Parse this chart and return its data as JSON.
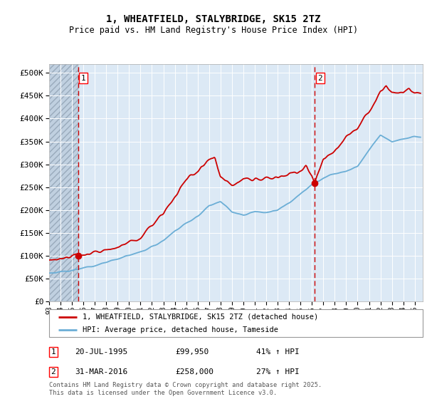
{
  "title": "1, WHEATFIELD, STALYBRIDGE, SK15 2TZ",
  "subtitle": "Price paid vs. HM Land Registry's House Price Index (HPI)",
  "ylim": [
    0,
    520000
  ],
  "yticks": [
    0,
    50000,
    100000,
    150000,
    200000,
    250000,
    300000,
    350000,
    400000,
    450000,
    500000
  ],
  "xlim_start": 1993,
  "xlim_end": 2025.7,
  "sale1": {
    "date_num": 1995.55,
    "price": 99950,
    "label": "1"
  },
  "sale2": {
    "date_num": 2016.25,
    "price": 258000,
    "label": "2"
  },
  "legend_line1": "1, WHEATFIELD, STALYBRIDGE, SK15 2TZ (detached house)",
  "legend_line2": "HPI: Average price, detached house, Tameside",
  "table_rows": [
    {
      "num": "1",
      "date": "20-JUL-1995",
      "price": "£99,950",
      "hpi": "41% ↑ HPI"
    },
    {
      "num": "2",
      "date": "31-MAR-2016",
      "price": "£258,000",
      "hpi": "27% ↑ HPI"
    }
  ],
  "footnote": "Contains HM Land Registry data © Crown copyright and database right 2025.\nThis data is licensed under the Open Government Licence v3.0.",
  "hpi_color": "#6baed6",
  "price_color": "#cc0000",
  "bg_color": "#dce9f5",
  "hatch_color": "#c0d0e0",
  "grid_color": "#ffffff",
  "hpi_waypoints_x": [
    1993,
    1995,
    1996,
    1997,
    1998,
    1999,
    2000,
    2001,
    2002,
    2003,
    2004,
    2005,
    2006,
    2007,
    2008,
    2009,
    2010,
    2011,
    2012,
    2013,
    2014,
    2015,
    2016,
    2017,
    2018,
    2019,
    2020,
    2021,
    2022,
    2023,
    2024,
    2025
  ],
  "hpi_waypoints_y": [
    62000,
    67000,
    72000,
    78000,
    85000,
    93000,
    100000,
    108000,
    118000,
    133000,
    155000,
    170000,
    185000,
    210000,
    220000,
    195000,
    190000,
    195000,
    195000,
    200000,
    215000,
    235000,
    255000,
    270000,
    280000,
    285000,
    295000,
    330000,
    365000,
    350000,
    355000,
    360000
  ],
  "price_waypoints_x": [
    1993,
    1995,
    1995.55,
    1996,
    1997,
    1998,
    1999,
    2000,
    2001,
    2002,
    2003,
    2004,
    2005,
    2006,
    2007,
    2007.5,
    2008,
    2009,
    2010,
    2011,
    2012,
    2013,
    2014,
    2015,
    2015.5,
    2016,
    2016.25,
    2017,
    2018,
    2019,
    2020,
    2021,
    2022,
    2022.5,
    2023,
    2024,
    2024.5,
    2025
  ],
  "price_waypoints_y": [
    90000,
    98000,
    99950,
    102000,
    108000,
    112000,
    118000,
    128000,
    140000,
    165000,
    195000,
    230000,
    265000,
    285000,
    310000,
    315000,
    270000,
    255000,
    268000,
    265000,
    268000,
    270000,
    280000,
    285000,
    295000,
    275000,
    258000,
    310000,
    330000,
    360000,
    380000,
    415000,
    460000,
    470000,
    455000,
    455000,
    465000,
    455000
  ],
  "noise_scale_hpi": 2500,
  "noise_scale_price": 4000,
  "noise_seed": 17
}
